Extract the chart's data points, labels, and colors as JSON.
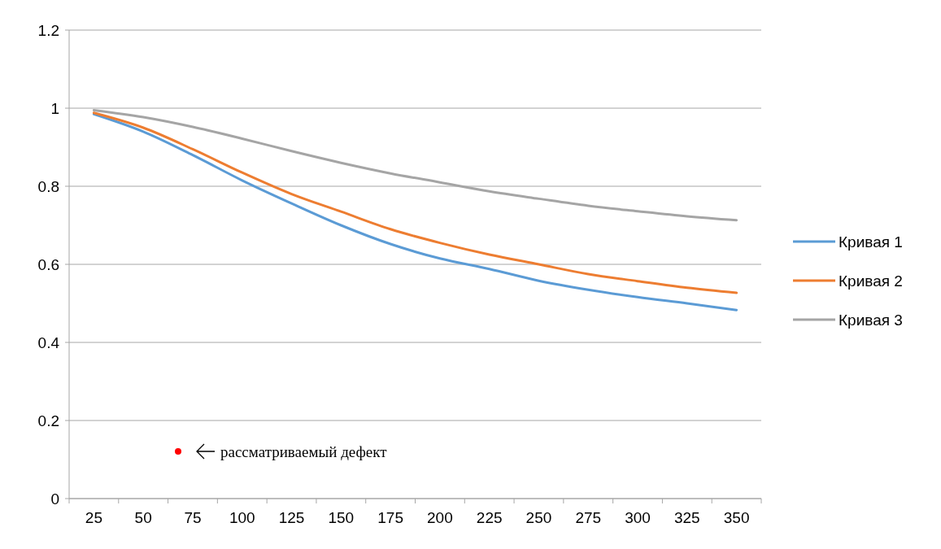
{
  "chart_data": {
    "type": "line",
    "categories": [
      "25",
      "50",
      "75",
      "100",
      "125",
      "150",
      "175",
      "200",
      "225",
      "250",
      "275",
      "300",
      "325",
      "350"
    ],
    "series": [
      {
        "name": "Кривая 1",
        "color": "#5b9bd5",
        "values": [
          0.985,
          0.94,
          0.88,
          0.815,
          0.756,
          0.7,
          0.652,
          0.615,
          0.588,
          0.558,
          0.535,
          0.516,
          0.5,
          0.483
        ]
      },
      {
        "name": "Кривая 2",
        "color": "#ed7d31",
        "values": [
          0.988,
          0.95,
          0.895,
          0.835,
          0.78,
          0.735,
          0.69,
          0.655,
          0.625,
          0.6,
          0.575,
          0.557,
          0.54,
          0.527
        ]
      },
      {
        "name": "Кривая 3",
        "color": "#a5a5a5",
        "values": [
          0.995,
          0.977,
          0.952,
          0.922,
          0.89,
          0.86,
          0.833,
          0.81,
          0.787,
          0.768,
          0.75,
          0.736,
          0.723,
          0.713
        ]
      }
    ],
    "ylim": [
      0,
      1.2
    ],
    "yticks": [
      0,
      0.2,
      0.4,
      0.6,
      0.8,
      1,
      1.2
    ],
    "grid": "y",
    "legend": "right",
    "marker": "none",
    "line_style": "solid",
    "annotations": [
      "рассматриваемый дефект"
    ]
  }
}
